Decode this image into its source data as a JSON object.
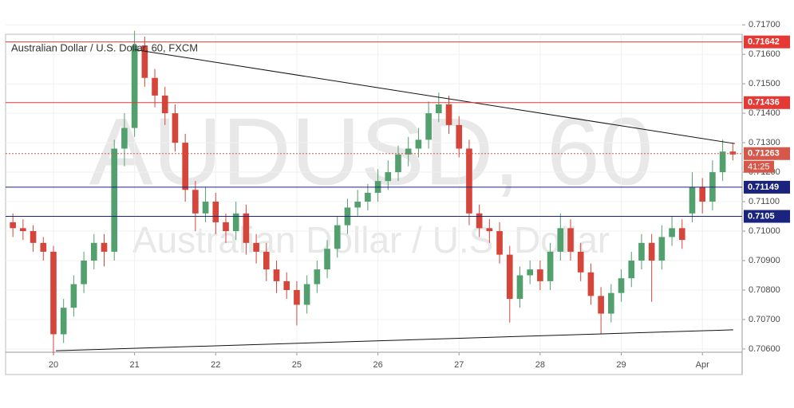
{
  "chart_data": {
    "type": "candlestick",
    "title": "Australian Dollar / U.S. Dollar, 60, FXCM",
    "watermark": "AUDUSD, 60",
    "watermark_sub": "Australian Dollar / U.S. Dollar",
    "up_color": "#53a06f",
    "down_color": "#d6453a",
    "xlim": [
      -0.59,
      8.49
    ],
    "xticks": [
      {
        "value": 0,
        "label": "20"
      },
      {
        "value": 1,
        "label": "21"
      },
      {
        "value": 2,
        "label": "22"
      },
      {
        "value": 3,
        "label": "25"
      },
      {
        "value": 4,
        "label": "26"
      },
      {
        "value": 5,
        "label": "27"
      },
      {
        "value": 6,
        "label": "28"
      },
      {
        "value": 7,
        "label": "29"
      },
      {
        "value": 8,
        "label": "Apr"
      }
    ],
    "ylim": [
      0.70589,
      0.71668
    ],
    "yticks": [
      {
        "value": 0.706,
        "label": "0.70600"
      },
      {
        "value": 0.707,
        "label": "0.70700"
      },
      {
        "value": 0.708,
        "label": "0.70800"
      },
      {
        "value": 0.709,
        "label": "0.70900"
      },
      {
        "value": 0.71,
        "label": "0.71000"
      },
      {
        "value": 0.711,
        "label": "0.71100"
      },
      {
        "value": 0.712,
        "label": "0.71200"
      },
      {
        "value": 0.713,
        "label": "0.71300"
      },
      {
        "value": 0.714,
        "label": "0.71400"
      },
      {
        "value": 0.715,
        "label": "0.71500"
      },
      {
        "value": 0.716,
        "label": "0.71600"
      },
      {
        "value": 0.717,
        "label": "0.71700"
      }
    ],
    "x": [
      -0.5,
      -0.375,
      -0.25,
      -0.125,
      0,
      0.125,
      0.25,
      0.375,
      0.5,
      0.625,
      0.75,
      0.875,
      1,
      1.125,
      1.25,
      1.375,
      1.5,
      1.625,
      1.75,
      1.875,
      2,
      2.125,
      2.25,
      2.375,
      2.5,
      2.625,
      2.75,
      2.875,
      3,
      3.125,
      3.25,
      3.375,
      3.5,
      3.625,
      3.75,
      3.875,
      4,
      4.125,
      4.25,
      4.375,
      4.5,
      4.625,
      4.75,
      4.875,
      5,
      5.125,
      5.25,
      5.375,
      5.5,
      5.625,
      5.75,
      5.875,
      6,
      6.125,
      6.25,
      6.375,
      6.5,
      6.625,
      6.75,
      6.875,
      7,
      7.125,
      7.25,
      7.375,
      7.5,
      7.625,
      7.75,
      7.875,
      8,
      8.125,
      8.25,
      8.375
    ],
    "open": [
      0.7103,
      0.7101,
      0.71,
      0.7096,
      0.7093,
      0.7065,
      0.7074,
      0.7082,
      0.709,
      0.7096,
      0.7093,
      0.7128,
      0.7135,
      0.7163,
      0.7152,
      0.7146,
      0.714,
      0.713,
      0.7114,
      0.7106,
      0.711,
      0.7103,
      0.71,
      0.7106,
      0.7096,
      0.7093,
      0.7087,
      0.7083,
      0.708,
      0.7075,
      0.7082,
      0.7087,
      0.7094,
      0.7102,
      0.7108,
      0.711,
      0.7113,
      0.7117,
      0.712,
      0.7126,
      0.7128,
      0.7131,
      0.714,
      0.7143,
      0.7136,
      0.7128,
      0.7106,
      0.7101,
      0.71,
      0.7092,
      0.7077,
      0.7085,
      0.7087,
      0.7083,
      0.7093,
      0.7101,
      0.7093,
      0.7086,
      0.7078,
      0.7072,
      0.7079,
      0.7084,
      0.709,
      0.7096,
      0.709,
      0.7098,
      0.7101,
      0.7106,
      0.7115,
      0.711,
      0.712,
      0.7127
    ],
    "high": [
      0.7106,
      0.7104,
      0.7102,
      0.7098,
      0.7095,
      0.7077,
      0.7085,
      0.7093,
      0.7099,
      0.7099,
      0.7131,
      0.714,
      0.7168,
      0.7166,
      0.7155,
      0.7149,
      0.7143,
      0.7133,
      0.7117,
      0.7115,
      0.7113,
      0.7106,
      0.711,
      0.7109,
      0.7099,
      0.7096,
      0.709,
      0.7086,
      0.7083,
      0.7085,
      0.709,
      0.7097,
      0.7105,
      0.7111,
      0.7114,
      0.7116,
      0.7121,
      0.7124,
      0.7129,
      0.7132,
      0.7135,
      0.7144,
      0.7147,
      0.7146,
      0.7139,
      0.7131,
      0.7109,
      0.7104,
      0.7103,
      0.7095,
      0.7088,
      0.709,
      0.709,
      0.7096,
      0.7106,
      0.7104,
      0.7096,
      0.7089,
      0.7081,
      0.7082,
      0.7087,
      0.7093,
      0.7099,
      0.7099,
      0.7102,
      0.7105,
      0.7104,
      0.712,
      0.7118,
      0.7124,
      0.7131,
      0.713
    ],
    "low": [
      0.7098,
      0.7097,
      0.7093,
      0.709,
      0.7058,
      0.7062,
      0.7071,
      0.7079,
      0.7087,
      0.7088,
      0.709,
      0.7122,
      0.7132,
      0.7149,
      0.7142,
      0.7136,
      0.7127,
      0.711,
      0.71,
      0.7103,
      0.7099,
      0.7096,
      0.7097,
      0.7092,
      0.7089,
      0.7083,
      0.7079,
      0.7077,
      0.7068,
      0.7072,
      0.7079,
      0.7084,
      0.7091,
      0.7099,
      0.7105,
      0.7107,
      0.711,
      0.7114,
      0.7117,
      0.7122,
      0.7125,
      0.7128,
      0.7137,
      0.7133,
      0.7125,
      0.7102,
      0.7098,
      0.7096,
      0.7089,
      0.7069,
      0.7074,
      0.7082,
      0.708,
      0.708,
      0.709,
      0.709,
      0.7083,
      0.7075,
      0.7065,
      0.7069,
      0.7076,
      0.7081,
      0.7087,
      0.7076,
      0.7087,
      0.7095,
      0.7094,
      0.7103,
      0.7106,
      0.7107,
      0.7117,
      0.7124
    ],
    "close": [
      0.7101,
      0.71,
      0.7096,
      0.7093,
      0.7065,
      0.7074,
      0.7082,
      0.709,
      0.7096,
      0.7093,
      0.7128,
      0.7135,
      0.7163,
      0.7152,
      0.7146,
      0.714,
      0.713,
      0.7114,
      0.7106,
      0.711,
      0.7103,
      0.71,
      0.7106,
      0.7096,
      0.7093,
      0.7087,
      0.7083,
      0.708,
      0.7075,
      0.7082,
      0.7087,
      0.7094,
      0.7102,
      0.7108,
      0.711,
      0.7113,
      0.7117,
      0.712,
      0.7126,
      0.7128,
      0.7131,
      0.714,
      0.7143,
      0.7136,
      0.7128,
      0.7106,
      0.7101,
      0.71,
      0.7092,
      0.7077,
      0.7085,
      0.7087,
      0.7083,
      0.7093,
      0.7101,
      0.7093,
      0.7086,
      0.7078,
      0.7072,
      0.7079,
      0.7084,
      0.709,
      0.7096,
      0.709,
      0.7098,
      0.7101,
      0.7097,
      0.7115,
      0.711,
      0.712,
      0.7127,
      0.7126
    ],
    "levels": [
      {
        "value": 0.71642,
        "color": "#e53935"
      },
      {
        "value": 0.71436,
        "color": "#e53935"
      },
      {
        "value": 0.71149,
        "color": "#1a237e"
      },
      {
        "value": 0.7105,
        "color": "#1a237e"
      }
    ],
    "current_price": {
      "value": 0.71263,
      "countdown": "41:25",
      "color": "#d6584a"
    },
    "trendlines": [
      {
        "x": [
          1,
          8.4
        ],
        "y": [
          0.71616,
          0.71297
        ]
      },
      {
        "x": [
          0.03,
          8.38
        ],
        "y": [
          0.70594,
          0.70665
        ]
      }
    ]
  }
}
